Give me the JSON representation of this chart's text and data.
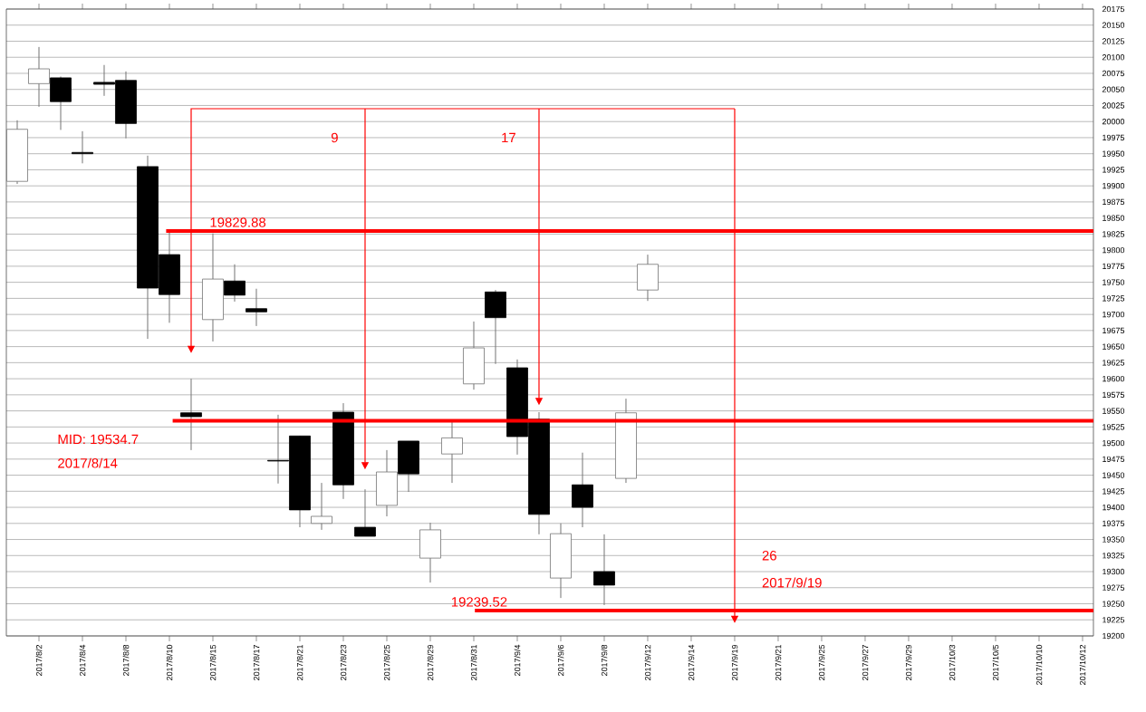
{
  "chart_data": {
    "type": "candlestick",
    "categories": [
      null,
      "2017/8/2",
      null,
      "2017/8/4",
      null,
      "2017/8/8",
      null,
      "2017/8/10",
      null,
      "2017/8/15",
      null,
      "2017/8/17",
      null,
      "2017/8/21",
      null,
      "2017/8/23",
      null,
      "2017/8/25",
      null,
      "2017/8/29",
      null,
      "2017/8/31",
      null,
      "2017/9/4",
      null,
      "2017/9/6",
      null,
      "2017/9/8",
      null,
      "2017/9/12",
      null,
      "2017/9/14",
      null,
      "2017/9/19",
      null,
      "2017/9/21",
      null,
      "2017/9/25",
      null,
      "2017/9/27",
      null,
      "2017/9/29",
      null,
      "2017/10/3",
      null,
      "2017/10/5",
      null,
      "2017/10/10",
      null,
      "2017/10/12"
    ],
    "ohlc": [
      [
        19907,
        20002,
        19903,
        19988
      ],
      [
        20059,
        20116,
        20023,
        20082
      ],
      [
        20068,
        20070,
        19987,
        20031
      ],
      [
        19952,
        19985,
        19935,
        19950
      ],
      [
        20061,
        20088,
        20040,
        20058
      ],
      [
        20064,
        20078,
        19974,
        19997
      ],
      [
        19930,
        19947,
        19662,
        19741
      ],
      [
        19793,
        19830,
        19687,
        19731
      ],
      [
        19547,
        19600,
        19489,
        19541
      ],
      [
        19692,
        19826,
        19658,
        19755
      ],
      [
        19752,
        19778,
        19720,
        19730
      ],
      [
        19709,
        19740,
        19682,
        19704
      ],
      [
        19473,
        19544,
        19437,
        19472
      ],
      [
        19511,
        19511,
        19369,
        19396
      ],
      [
        19375,
        19438,
        19365,
        19386
      ],
      [
        19548,
        19562,
        19413,
        19435
      ],
      [
        19369,
        19428,
        19355,
        19355
      ],
      [
        19403,
        19489,
        19386,
        19455
      ],
      [
        19503,
        19503,
        19424,
        19452
      ],
      [
        19321,
        19376,
        19283,
        19365
      ],
      [
        19483,
        19534,
        19438,
        19508
      ],
      [
        19592,
        19689,
        19583,
        19648
      ],
      [
        19735,
        19738,
        19623,
        19695
      ],
      [
        19617,
        19630,
        19482,
        19510
      ],
      [
        19537,
        19548,
        19358,
        19389
      ],
      [
        19290,
        19375,
        19259,
        19359
      ],
      [
        19435,
        19485,
        19369,
        19400
      ],
      [
        19300,
        19358,
        19248,
        19279
      ],
      [
        19445,
        19569,
        19438,
        19547
      ],
      [
        19738,
        19793,
        19721,
        19778
      ],
      null,
      null,
      null,
      null,
      null,
      null,
      null,
      null,
      null,
      null,
      null,
      null,
      null,
      null,
      null,
      null,
      null,
      null,
      null,
      null
    ],
    "ylim": [
      19200,
      20175
    ],
    "yticks": [
      19200,
      19225,
      19250,
      19275,
      19300,
      19325,
      19350,
      19375,
      19400,
      19425,
      19450,
      19475,
      19500,
      19525,
      19550,
      19575,
      19600,
      19625,
      19650,
      19675,
      19700,
      19725,
      19750,
      19775,
      19800,
      19825,
      19850,
      19875,
      19900,
      19925,
      19950,
      19975,
      20000,
      20025,
      20050,
      20075,
      20100,
      20125,
      20150,
      20175
    ],
    "grid": "y",
    "ref_lines": [
      {
        "axis": "y",
        "value": 19829.88,
        "label": "19829.88",
        "color": "#ff0000"
      },
      {
        "axis": "y",
        "value": 19534.7,
        "label": "MID: 19534.7",
        "color": "#ff0000"
      },
      {
        "axis": "y",
        "value": 19239.52,
        "label": "19239.52",
        "color": "#ff0000"
      }
    ],
    "annotations": [
      "2017/8/14",
      "9",
      "17",
      "26",
      "2017/9/19"
    ]
  }
}
